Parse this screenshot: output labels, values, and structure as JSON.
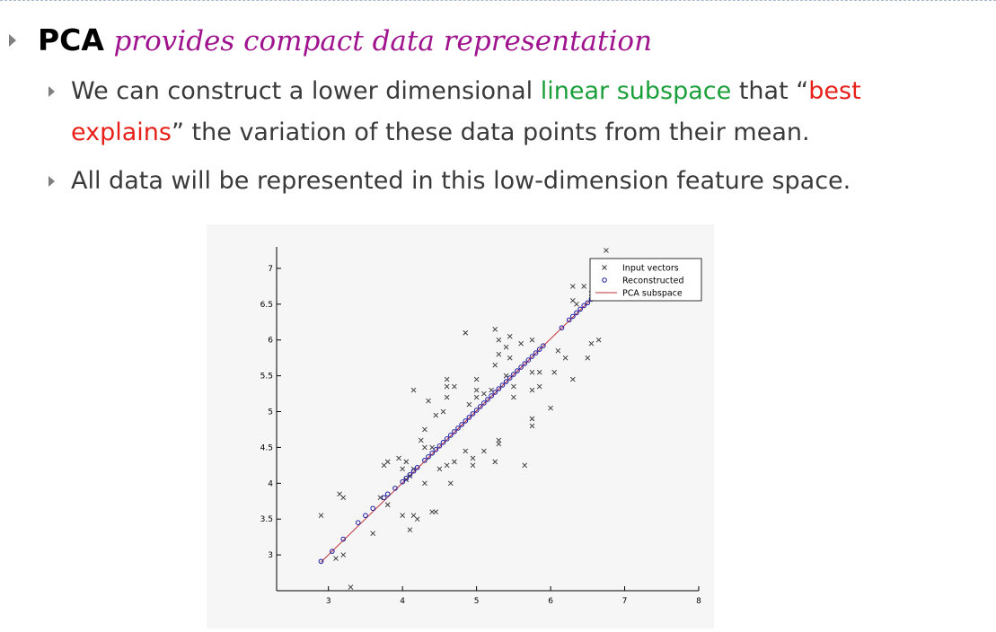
{
  "bullets": {
    "main": {
      "keyword": "PCA",
      "rest": "provides compact data representation"
    },
    "sub1": {
      "part1": "We can construct a lower dimensional ",
      "highlight1": "linear subspace",
      "part2": " that “",
      "highlight2a": "best",
      "highlight2b": "explains",
      "part3": "” the variation of these data points from their mean."
    },
    "sub2": {
      "text": "All data will be represented in this low-dimension feature space."
    }
  },
  "colors": {
    "keyword": "#000000",
    "purple": "#a0138e",
    "green": "#1a9f3a",
    "red": "#e8201a",
    "bullet": "#7f7f7f"
  },
  "chart_data": {
    "type": "scatter",
    "title": "",
    "xlabel": "",
    "ylabel": "",
    "xlim": [
      2.3,
      8.0
    ],
    "ylim": [
      2.5,
      7.3
    ],
    "xticks": [
      "3",
      "4",
      "5",
      "6",
      "7",
      "8"
    ],
    "yticks": [
      "3",
      "3.5",
      "4",
      "4.5",
      "5",
      "5.5",
      "6",
      "6.5",
      "7"
    ],
    "grid": false,
    "legend": "top-right",
    "series": [
      {
        "name": "Input vectors",
        "marker": "x",
        "color": "#333333",
        "points": [
          [
            2.9,
            3.55
          ],
          [
            3.2,
            3.0
          ],
          [
            3.1,
            2.95
          ],
          [
            3.3,
            2.55
          ],
          [
            3.15,
            3.85
          ],
          [
            3.2,
            3.8
          ],
          [
            3.6,
            3.3
          ],
          [
            3.7,
            3.8
          ],
          [
            3.8,
            3.7
          ],
          [
            4.0,
            3.55
          ],
          [
            4.15,
            3.55
          ],
          [
            4.1,
            3.35
          ],
          [
            4.2,
            3.5
          ],
          [
            4.4,
            3.6
          ],
          [
            4.45,
            3.6
          ],
          [
            4.65,
            4.0
          ],
          [
            3.75,
            4.25
          ],
          [
            3.8,
            4.3
          ],
          [
            3.95,
            4.35
          ],
          [
            4.05,
            4.05
          ],
          [
            4.1,
            4.1
          ],
          [
            4.0,
            4.2
          ],
          [
            4.05,
            4.3
          ],
          [
            4.15,
            4.2
          ],
          [
            4.3,
            4.0
          ],
          [
            4.5,
            4.2
          ],
          [
            4.6,
            4.25
          ],
          [
            4.3,
            4.5
          ],
          [
            4.25,
            4.6
          ],
          [
            4.4,
            4.5
          ],
          [
            4.7,
            4.3
          ],
          [
            4.85,
            4.45
          ],
          [
            4.95,
            4.25
          ],
          [
            4.95,
            4.35
          ],
          [
            5.1,
            4.45
          ],
          [
            5.25,
            4.3
          ],
          [
            5.3,
            4.55
          ],
          [
            5.3,
            4.6
          ],
          [
            5.65,
            4.25
          ],
          [
            5.75,
            4.8
          ],
          [
            5.75,
            4.9
          ],
          [
            6.0,
            5.05
          ],
          [
            4.3,
            4.75
          ],
          [
            4.45,
            4.95
          ],
          [
            4.55,
            5.0
          ],
          [
            4.35,
            5.15
          ],
          [
            4.15,
            5.3
          ],
          [
            4.6,
            5.2
          ],
          [
            4.6,
            5.35
          ],
          [
            4.7,
            5.35
          ],
          [
            4.6,
            5.45
          ],
          [
            4.9,
            5.1
          ],
          [
            5.0,
            5.2
          ],
          [
            5.0,
            5.3
          ],
          [
            5.1,
            5.25
          ],
          [
            5.2,
            5.3
          ],
          [
            5.0,
            5.45
          ],
          [
            5.25,
            5.65
          ],
          [
            5.3,
            5.8
          ],
          [
            5.4,
            5.9
          ],
          [
            5.45,
            5.75
          ],
          [
            5.4,
            5.5
          ],
          [
            5.5,
            5.2
          ],
          [
            5.5,
            5.35
          ],
          [
            5.75,
            5.3
          ],
          [
            5.85,
            5.35
          ],
          [
            5.75,
            5.55
          ],
          [
            5.85,
            5.55
          ],
          [
            6.05,
            5.55
          ],
          [
            6.3,
            5.45
          ],
          [
            6.5,
            5.75
          ],
          [
            6.55,
            5.95
          ],
          [
            6.65,
            6.0
          ],
          [
            6.1,
            5.85
          ],
          [
            5.6,
            5.95
          ],
          [
            5.75,
            6.0
          ],
          [
            5.45,
            6.05
          ],
          [
            5.25,
            6.15
          ],
          [
            4.85,
            6.1
          ],
          [
            5.3,
            6.0
          ],
          [
            6.3,
            6.55
          ],
          [
            6.35,
            6.5
          ],
          [
            6.3,
            6.75
          ],
          [
            6.45,
            6.75
          ],
          [
            6.55,
            6.65
          ],
          [
            6.75,
            7.25
          ],
          [
            6.2,
            5.75
          ]
        ]
      },
      {
        "name": "Reconstructed",
        "marker": "o",
        "color": "#1a1aa0",
        "points": [
          [
            2.9,
            2.91
          ],
          [
            3.05,
            3.05
          ],
          [
            3.2,
            3.22
          ],
          [
            3.4,
            3.45
          ],
          [
            3.5,
            3.55
          ],
          [
            3.6,
            3.65
          ],
          [
            3.75,
            3.8
          ],
          [
            3.8,
            3.85
          ],
          [
            3.9,
            3.93
          ],
          [
            4.0,
            4.02
          ],
          [
            4.05,
            4.07
          ],
          [
            4.1,
            4.12
          ],
          [
            4.15,
            4.17
          ],
          [
            4.2,
            4.22
          ],
          [
            4.3,
            4.32
          ],
          [
            4.35,
            4.37
          ],
          [
            4.4,
            4.42
          ],
          [
            4.45,
            4.47
          ],
          [
            4.5,
            4.52
          ],
          [
            4.55,
            4.57
          ],
          [
            4.6,
            4.62
          ],
          [
            4.65,
            4.67
          ],
          [
            4.7,
            4.72
          ],
          [
            4.75,
            4.77
          ],
          [
            4.8,
            4.82
          ],
          [
            4.85,
            4.87
          ],
          [
            4.9,
            4.92
          ],
          [
            4.95,
            4.97
          ],
          [
            5.0,
            5.02
          ],
          [
            5.05,
            5.07
          ],
          [
            5.1,
            5.12
          ],
          [
            5.15,
            5.17
          ],
          [
            5.2,
            5.22
          ],
          [
            5.25,
            5.27
          ],
          [
            5.3,
            5.32
          ],
          [
            5.35,
            5.37
          ],
          [
            5.4,
            5.42
          ],
          [
            5.45,
            5.47
          ],
          [
            5.5,
            5.52
          ],
          [
            5.55,
            5.57
          ],
          [
            5.6,
            5.62
          ],
          [
            5.65,
            5.67
          ],
          [
            5.7,
            5.72
          ],
          [
            5.75,
            5.77
          ],
          [
            5.8,
            5.82
          ],
          [
            5.85,
            5.87
          ],
          [
            5.9,
            5.92
          ],
          [
            6.15,
            6.17
          ],
          [
            6.25,
            6.28
          ],
          [
            6.3,
            6.33
          ],
          [
            6.35,
            6.38
          ],
          [
            6.4,
            6.43
          ],
          [
            6.45,
            6.48
          ],
          [
            6.5,
            6.52
          ],
          [
            6.55,
            6.57
          ]
        ]
      },
      {
        "name": "PCA subspace",
        "marker": "line",
        "color": "#c0303a",
        "points": [
          [
            2.9,
            2.9
          ],
          [
            6.6,
            6.62
          ]
        ]
      }
    ]
  }
}
